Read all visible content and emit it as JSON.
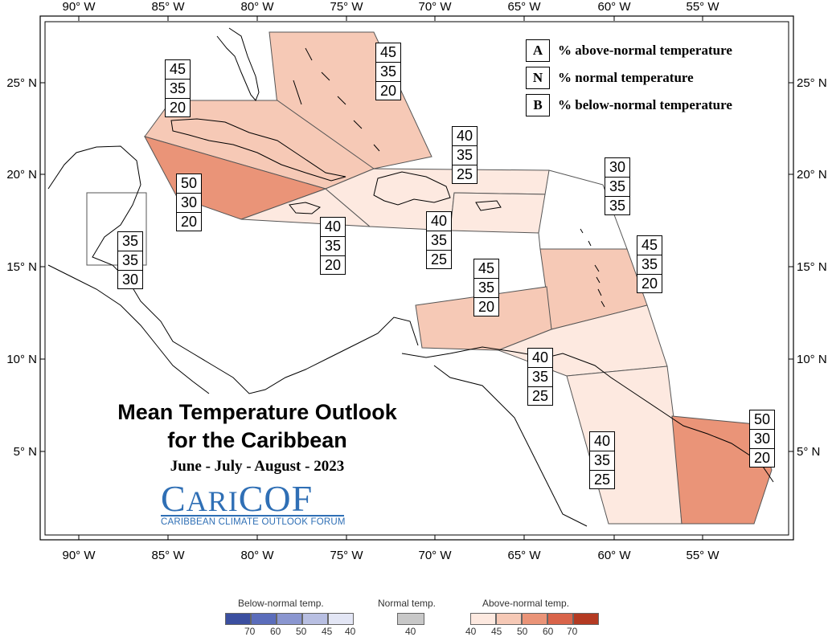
{
  "axes": {
    "x_labels_top": [
      "90° W",
      "85° W",
      "80° W",
      "75° W",
      "70° W",
      "65° W",
      "60° W",
      "55° W"
    ],
    "x_labels_bottom": [
      "90° W",
      "85° W",
      "80° W",
      "75° W",
      "70° W",
      "65° W",
      "60° W",
      "55° W"
    ],
    "y_labels_left": [
      "25° N",
      "20° N",
      "15° N",
      "10° N",
      "5° N"
    ],
    "y_labels_right": [
      "25° N",
      "20° N",
      "15° N",
      "10° N",
      "5° N"
    ]
  },
  "legend": {
    "items": [
      {
        "key": "A",
        "label": "% above-normal temperature"
      },
      {
        "key": "N",
        "label": "% normal temperature"
      },
      {
        "key": "B",
        "label": "% below-normal temperature"
      }
    ]
  },
  "regions": [
    {
      "id": "bahamas",
      "values": [
        "45",
        "35",
        "20"
      ],
      "fill": "#f6c9b6"
    },
    {
      "id": "cuba",
      "values": [
        "45",
        "35",
        "20"
      ],
      "fill": "#f6c9b6"
    },
    {
      "id": "cayman",
      "values": [
        "50",
        "30",
        "20"
      ],
      "fill": "#ea9478"
    },
    {
      "id": "jamaica",
      "values": [
        "40",
        "35",
        "20"
      ],
      "fill": "#fde9e0"
    },
    {
      "id": "hispaniola",
      "values": [
        "40",
        "35",
        "25"
      ],
      "fill": "#fde9e0"
    },
    {
      "id": "puerto-rico",
      "values": [
        "40",
        "35",
        "25"
      ],
      "fill": "#fde9e0"
    },
    {
      "id": "belize",
      "values": [
        "35",
        "35",
        "30"
      ],
      "fill": "#ffffff"
    },
    {
      "id": "leeward",
      "values": [
        "30",
        "35",
        "35"
      ],
      "fill": "#ffffff"
    },
    {
      "id": "windward",
      "values": [
        "45",
        "35",
        "20"
      ],
      "fill": "#f6c9b6"
    },
    {
      "id": "abc-islands",
      "values": [
        "45",
        "35",
        "20"
      ],
      "fill": "#f6c9b6"
    },
    {
      "id": "trinidad",
      "values": [
        "40",
        "35",
        "25"
      ],
      "fill": "#fde9e0"
    },
    {
      "id": "guyana",
      "values": [
        "40",
        "35",
        "25"
      ],
      "fill": "#fde9e0"
    },
    {
      "id": "french-guiana",
      "values": [
        "50",
        "30",
        "20"
      ],
      "fill": "#ea9478"
    }
  ],
  "title": {
    "line1": "Mean Temperature Outlook",
    "line2": "for the Caribbean",
    "season": "June - July - August - 2023"
  },
  "logo": {
    "main_a": "C",
    "main_b": "ARI",
    "main_c": "COF",
    "sub": "CARIBBEAN CLIMATE OUTLOOK FORUM"
  },
  "color_scale": {
    "below_label": "Below-normal temp.",
    "normal_label": "Normal temp.",
    "above_label": "Above-normal temp.",
    "below_ticks": [
      "70",
      "60",
      "50",
      "45",
      "40"
    ],
    "normal_ticks": [
      "40"
    ],
    "above_ticks": [
      "40",
      "45",
      "50",
      "60",
      "70"
    ],
    "below_colors": [
      "#3b4fa0",
      "#5b6dbb",
      "#8a96d0",
      "#b8bfe2",
      "#e3e6f5"
    ],
    "normal_color": "#c8c8c8",
    "above_colors": [
      "#fde9e0",
      "#f6c9b6",
      "#ea9478",
      "#d9644a",
      "#b43a22"
    ]
  }
}
